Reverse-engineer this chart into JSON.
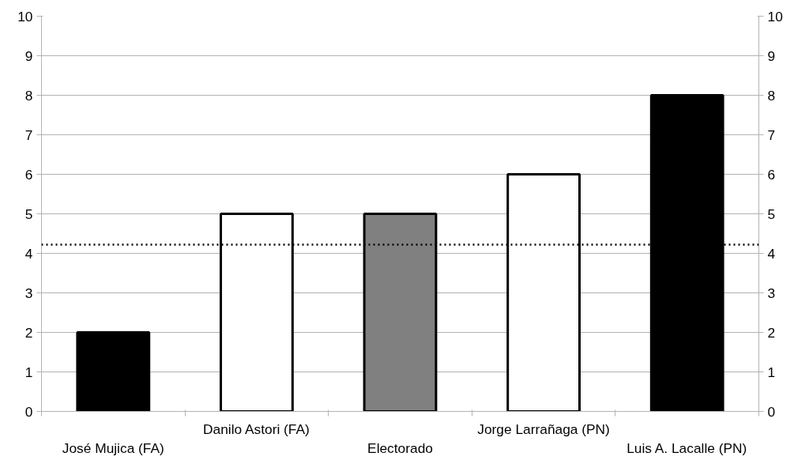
{
  "chart_data": {
    "type": "bar",
    "categories": [
      "José Mujica (FA)",
      "Danilo Astori (FA)",
      "Electorado",
      "Jorge Larrañaga (PN)",
      "Luis A. Lacalle (PN)"
    ],
    "values": [
      2,
      5,
      5,
      6,
      8
    ],
    "colors": [
      "#000000",
      "#ffffff",
      "#808080",
      "#ffffff",
      "#000000"
    ],
    "ylim": [
      0,
      10
    ],
    "yticks": [
      0,
      1,
      2,
      3,
      4,
      5,
      6,
      7,
      8,
      9,
      10
    ],
    "y2lim": [
      0,
      10
    ],
    "y2ticks": [
      0,
      1,
      2,
      3,
      4,
      5,
      6,
      7,
      8,
      9,
      10
    ],
    "grid": "y",
    "ref_lines": [
      {
        "axis": "y",
        "value": 4.22,
        "color": "#000000",
        "line_style": "dotted"
      }
    ]
  }
}
